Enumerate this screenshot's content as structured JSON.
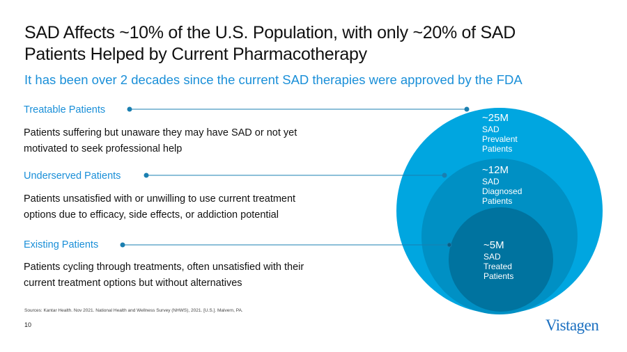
{
  "title_line1": "SAD Affects ~10% of the U.S. Population, with only ~20% of SAD",
  "title_line2": "Patients Helped by Current Pharmacotherapy",
  "subtitle": "It has been over 2 decades since the current SAD therapies were approved by the FDA",
  "segments": [
    {
      "label": "Treatable Patients",
      "desc1": "Patients suffering but unaware they may have SAD or not yet",
      "desc2": "motivated to seek professional help"
    },
    {
      "label": "Underserved Patients",
      "desc1": "Patients unsatisfied with or unwilling to use current treatment",
      "desc2": "options due to efficacy, side effects, or addiction potential"
    },
    {
      "label": "Existing Patients",
      "desc1": "Patients cycling through treatments, often unsatisfied with their",
      "desc2": "current treatment options but without alternatives"
    }
  ],
  "circles": [
    {
      "value": "~25M",
      "l1": "SAD",
      "l2": "Prevalent",
      "l3": "Patients",
      "color": "#00a6e0"
    },
    {
      "value": "~12M",
      "l1": "SAD",
      "l2": "Diagnosed",
      "l3": "Patients",
      "color": "#0090c4"
    },
    {
      "value": "~5M",
      "l1": "SAD",
      "l2": "Treated",
      "l3": "Patients",
      "color": "#00739f"
    }
  ],
  "line_color": "#1a7fb0",
  "sources": "Sources: Kantar Health. Nov 2021. National Health and Wellness Survey (NHWS), 2021. [U.S.]. Malvern, PA.",
  "page_number": "10",
  "logo": "Vistagen"
}
